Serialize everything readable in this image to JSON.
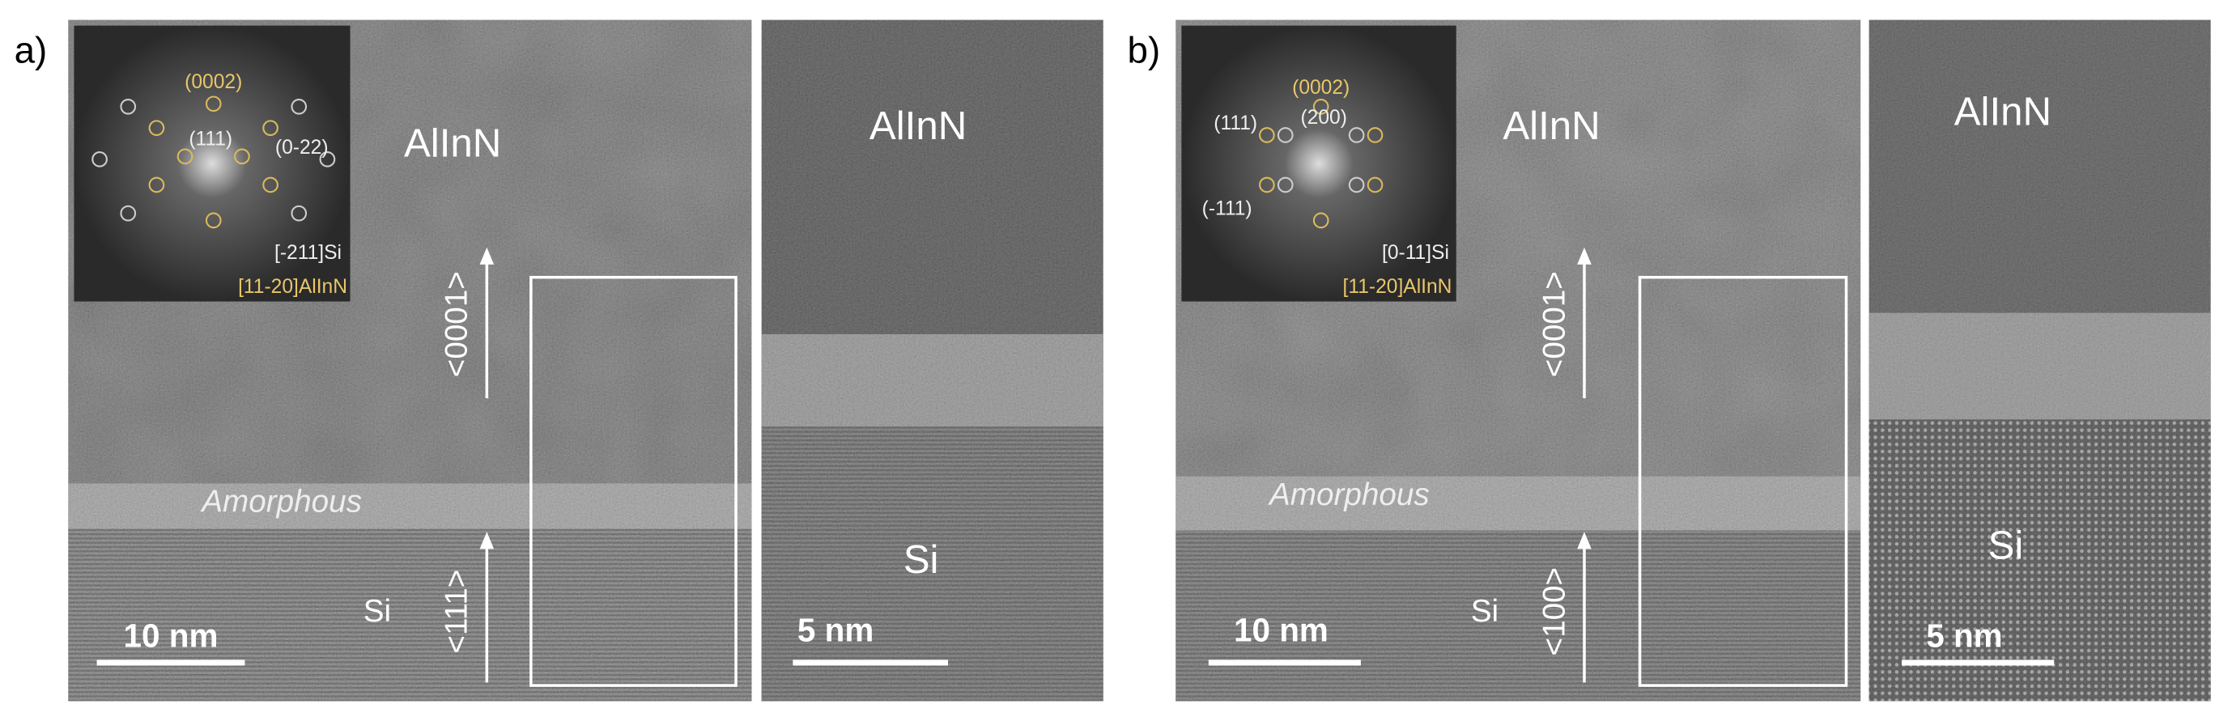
{
  "panels": [
    {
      "label": "a)",
      "fft": {
        "spots": [
          "(0002)",
          "(111)",
          "(0-22)"
        ],
        "zone_si": "[-211]Si",
        "zone_film": "[11-20]AlInN"
      },
      "main": {
        "film": "AlInN",
        "growth_direction": "<0001>",
        "interlayer": "Amorphous",
        "substrate": "Si",
        "substrate_direction": "<111>",
        "scale_bar": "10 nm"
      },
      "zoom": {
        "film": "AlInN",
        "substrate": "Si",
        "scale_bar": "5 nm"
      }
    },
    {
      "label": "b)",
      "fft": {
        "spots": [
          "(0002)",
          "(111)",
          "(200)",
          "(-111)"
        ],
        "zone_si": "[0-11]Si",
        "zone_film": "[11-20]AlInN"
      },
      "main": {
        "film": "AlInN",
        "growth_direction": "<0001>",
        "interlayer": "Amorphous",
        "substrate": "Si",
        "substrate_direction": "<100>",
        "scale_bar": "10 nm"
      },
      "zoom": {
        "film": "AlInN",
        "substrate": "Si",
        "scale_bar": "5 nm"
      }
    }
  ]
}
